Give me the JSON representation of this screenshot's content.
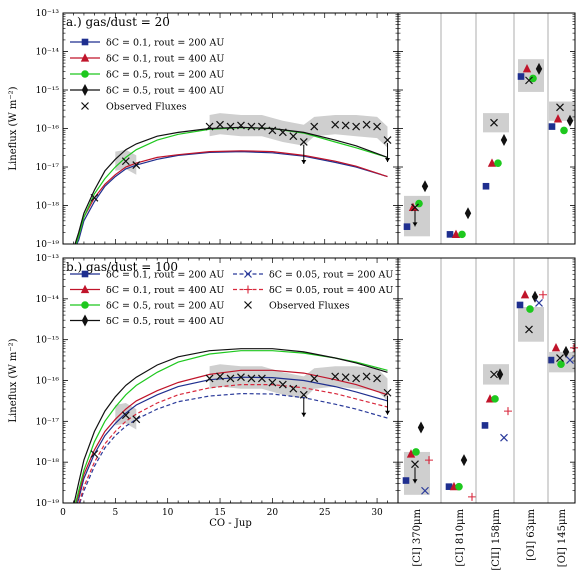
{
  "chart_data": [
    {
      "type": "line",
      "panel_title": "a.)  gas/dust = 20",
      "ylabel": "Lineflux (W m⁻²)",
      "xlim": [
        0,
        32
      ],
      "ylim_log10": [
        -19,
        -13
      ],
      "yscale": "log",
      "ytick_labels": [
        "10⁻¹⁹",
        "10⁻¹⁸",
        "10⁻¹⁷",
        "10⁻¹⁶",
        "10⁻¹⁵",
        "10⁻¹⁴",
        "10⁻¹³"
      ],
      "legend": [
        {
          "label": "δC = 0.1, rout = 200 AU",
          "color": "#1f2f8f",
          "marker": "square",
          "line": "solid"
        },
        {
          "label": "δC = 0.1, rout = 400 AU",
          "color": "#c0142a",
          "marker": "triangle",
          "line": "solid"
        },
        {
          "label": "δC = 0.5, rout = 200 AU",
          "color": "#1ec81e",
          "marker": "circle",
          "line": "solid"
        },
        {
          "label": "δC = 0.5, rout = 400 AU",
          "color": "#111111",
          "marker": "diamond",
          "line": "solid"
        },
        {
          "label": "Observed Fluxes",
          "color": "#111111",
          "marker": "x",
          "line": "none"
        }
      ],
      "observed_co": {
        "x": [
          3,
          6,
          7,
          14,
          15,
          16,
          17,
          18,
          19,
          20,
          21,
          22,
          23,
          24,
          26,
          27,
          28,
          29,
          30,
          31
        ],
        "log10_y": [
          -17.8,
          -16.85,
          -16.95,
          -15.95,
          -15.9,
          -15.95,
          -15.92,
          -15.95,
          -15.95,
          -16.05,
          -16.1,
          -16.2,
          -16.35,
          -15.95,
          -15.9,
          -15.92,
          -15.95,
          -15.9,
          -15.95,
          -16.3
        ]
      },
      "upper_limit_x": [
        23,
        31
      ],
      "obs_band": {
        "x": [
          5,
          6,
          7,
          14,
          15,
          17,
          19,
          21,
          23,
          24,
          26,
          28,
          30,
          31
        ],
        "log10_lo": [
          -17.1,
          -17.05,
          -17.2,
          -16.2,
          -16.15,
          -16.2,
          -16.2,
          -16.35,
          -16.45,
          -16.2,
          -16.15,
          -16.2,
          -16.25,
          -16.5
        ],
        "log10_hi": [
          -16.6,
          -16.55,
          -16.7,
          -15.65,
          -15.6,
          -15.65,
          -15.65,
          -15.8,
          -15.9,
          -15.7,
          -15.65,
          -15.65,
          -15.7,
          -15.95
        ]
      },
      "series": [
        {
          "color": "#1f2f8f",
          "x": [
            0.8,
            1.5,
            2,
            3,
            4,
            5,
            6,
            7,
            9,
            11,
            14,
            17,
            20,
            23,
            26,
            28,
            31
          ],
          "log10_y": [
            -19.3,
            -18.9,
            -18.4,
            -17.9,
            -17.5,
            -17.25,
            -17.05,
            -16.95,
            -16.8,
            -16.7,
            -16.62,
            -16.6,
            -16.63,
            -16.72,
            -16.88,
            -17.0,
            -17.25
          ]
        },
        {
          "color": "#c0142a",
          "x": [
            0.8,
            1.5,
            2,
            3,
            4,
            5,
            6,
            7,
            9,
            11,
            14,
            17,
            20,
            23,
            26,
            28,
            31
          ],
          "log10_y": [
            -19.3,
            -18.8,
            -18.3,
            -17.8,
            -17.45,
            -17.2,
            -17.0,
            -16.9,
            -16.75,
            -16.68,
            -16.6,
            -16.58,
            -16.6,
            -16.7,
            -16.85,
            -16.98,
            -17.25
          ]
        },
        {
          "color": "#1ec81e",
          "x": [
            1,
            1.5,
            2,
            3,
            4,
            5,
            6,
            7,
            9,
            11,
            14,
            17,
            20,
            23,
            26,
            28,
            31
          ],
          "log10_y": [
            -19.2,
            -18.8,
            -18.3,
            -17.7,
            -17.3,
            -17.0,
            -16.75,
            -16.55,
            -16.3,
            -16.15,
            -16.02,
            -15.98,
            -16.0,
            -16.12,
            -16.35,
            -16.5,
            -16.75
          ]
        },
        {
          "color": "#111111",
          "x": [
            0.8,
            1.5,
            2,
            3,
            4,
            5,
            6,
            7,
            9,
            11,
            14,
            17,
            20,
            23,
            26,
            28,
            31
          ],
          "log10_y": [
            -19.3,
            -18.7,
            -18.2,
            -17.6,
            -17.1,
            -16.8,
            -16.55,
            -16.4,
            -16.2,
            -16.1,
            -16.0,
            -15.97,
            -16.0,
            -16.1,
            -16.3,
            -16.45,
            -16.75
          ]
        }
      ],
      "atomic_lines": {
        "categories": [
          "[CI] 370μm",
          "[CI] 810μm",
          "[CII] 158μm",
          "[OI] 63μm",
          "[OI] 145μm"
        ],
        "observed_log10": [
          -18.05,
          null,
          -15.85,
          -14.75,
          -15.45
        ],
        "band": [
          [
            -18.8,
            -17.75
          ],
          null,
          [
            -16.1,
            -15.6
          ],
          [
            -15.05,
            -14.2
          ],
          [
            -15.8,
            -15.3
          ]
        ],
        "upper_limits": [
          0
        ],
        "models": [
          {
            "marker": "square",
            "color": "#1f2f8f",
            "log10_y": [
              -18.55,
              -18.75,
              -17.5,
              -14.65,
              -15.95
            ]
          },
          {
            "marker": "triangle",
            "color": "#c0142a",
            "log10_y": [
              -18.05,
              -18.75,
              -16.9,
              -14.45,
              -15.75
            ]
          },
          {
            "marker": "circle",
            "color": "#1ec81e",
            "log10_y": [
              -17.95,
              -18.75,
              -16.9,
              -14.7,
              -16.05
            ]
          },
          {
            "marker": "diamond",
            "color": "#111111",
            "log10_y": [
              -17.5,
              -18.2,
              -16.3,
              -14.45,
              -15.8
            ]
          }
        ]
      }
    },
    {
      "type": "line",
      "panel_title": "b.)  gas/dust = 100",
      "ylabel": "Lineflux (W m⁻²)",
      "xlabel": "CO - Jup",
      "xlim": [
        0,
        32
      ],
      "xticks": [
        0,
        5,
        10,
        15,
        20,
        25,
        30
      ],
      "ylim_log10": [
        -19,
        -13
      ],
      "yscale": "log",
      "ytick_labels": [
        "10⁻¹⁹",
        "10⁻¹⁸",
        "10⁻¹⁷",
        "10⁻¹⁶",
        "10⁻¹⁵",
        "10⁻¹⁴",
        "10⁻¹³"
      ],
      "legend": [
        {
          "label": "δC = 0.1, rout = 200 AU",
          "color": "#1f2f8f",
          "marker": "square",
          "line": "solid"
        },
        {
          "label": "δC = 0.1, rout = 400 AU",
          "color": "#c0142a",
          "marker": "triangle",
          "line": "solid"
        },
        {
          "label": "δC = 0.5, rout = 200 AU",
          "color": "#1ec81e",
          "marker": "circle",
          "line": "solid"
        },
        {
          "label": "δC = 0.5, rout = 400 AU",
          "color": "#111111",
          "marker": "diamond",
          "line": "solid"
        },
        {
          "label": "δC = 0.05, rout = 200 AU",
          "color": "#2a3a9a",
          "marker": "x",
          "line": "dashed"
        },
        {
          "label": "δC = 0.05, rout = 400 AU",
          "color": "#d8283c",
          "marker": "plus",
          "line": "dashed"
        },
        {
          "label": "Observed Fluxes",
          "color": "#111111",
          "marker": "x",
          "line": "none"
        }
      ],
      "observed_co": {
        "x": [
          3,
          6,
          7,
          14,
          15,
          16,
          17,
          18,
          19,
          20,
          21,
          22,
          23,
          24,
          26,
          27,
          28,
          29,
          30,
          31
        ],
        "log10_y": [
          -17.8,
          -16.85,
          -16.95,
          -15.95,
          -15.9,
          -15.95,
          -15.92,
          -15.95,
          -15.95,
          -16.05,
          -16.1,
          -16.2,
          -16.35,
          -15.95,
          -15.9,
          -15.92,
          -15.95,
          -15.9,
          -15.95,
          -16.3
        ]
      },
      "upper_limit_x": [
        23,
        31
      ],
      "obs_band": {
        "x": [
          5,
          6,
          7,
          14,
          15,
          17,
          19,
          21,
          23,
          24,
          26,
          28,
          30,
          31
        ],
        "log10_lo": [
          -17.1,
          -17.05,
          -17.2,
          -16.2,
          -16.15,
          -16.2,
          -16.2,
          -16.35,
          -16.45,
          -16.2,
          -16.15,
          -16.2,
          -16.25,
          -16.5
        ],
        "log10_hi": [
          -16.6,
          -16.55,
          -16.7,
          -15.65,
          -15.6,
          -15.65,
          -15.65,
          -15.8,
          -15.9,
          -15.7,
          -15.65,
          -15.65,
          -15.7,
          -15.95
        ]
      },
      "series": [
        {
          "color": "#1f2f8f",
          "dash": false,
          "x": [
            1,
            1.5,
            2,
            3,
            4,
            5,
            6,
            7,
            9,
            11,
            14,
            17,
            20,
            23,
            26,
            28,
            31
          ],
          "log10_y": [
            -19.3,
            -18.9,
            -18.4,
            -17.8,
            -17.35,
            -17.05,
            -16.8,
            -16.6,
            -16.35,
            -16.15,
            -15.98,
            -15.92,
            -15.93,
            -16.0,
            -16.15,
            -16.28,
            -16.5
          ]
        },
        {
          "color": "#c0142a",
          "dash": false,
          "x": [
            1,
            1.5,
            2,
            3,
            4,
            5,
            6,
            7,
            9,
            11,
            14,
            17,
            20,
            23,
            26,
            28,
            31
          ],
          "log10_y": [
            -19.2,
            -18.8,
            -18.3,
            -17.7,
            -17.25,
            -16.95,
            -16.7,
            -16.5,
            -16.25,
            -16.05,
            -15.85,
            -15.75,
            -15.75,
            -15.82,
            -15.98,
            -16.1,
            -16.35
          ]
        },
        {
          "color": "#1ec81e",
          "dash": false,
          "x": [
            1,
            1.5,
            2,
            3,
            4,
            5,
            6,
            7,
            9,
            11,
            14,
            17,
            20,
            23,
            26,
            28,
            31
          ],
          "log10_y": [
            -19.2,
            -18.7,
            -18.2,
            -17.5,
            -17.0,
            -16.65,
            -16.35,
            -16.12,
            -15.8,
            -15.55,
            -15.35,
            -15.27,
            -15.27,
            -15.33,
            -15.45,
            -15.55,
            -15.75
          ]
        },
        {
          "color": "#111111",
          "dash": false,
          "x": [
            0.8,
            1.5,
            2,
            3,
            4,
            5,
            6,
            7,
            9,
            11,
            14,
            17,
            20,
            23,
            26,
            28,
            31
          ],
          "log10_y": [
            -19.3,
            -18.5,
            -17.95,
            -17.25,
            -16.75,
            -16.4,
            -16.12,
            -15.92,
            -15.62,
            -15.42,
            -15.27,
            -15.22,
            -15.22,
            -15.3,
            -15.45,
            -15.57,
            -15.8
          ]
        },
        {
          "color": "#2a3a9a",
          "dash": true,
          "x": [
            1.2,
            2,
            3,
            4,
            5,
            6,
            7,
            9,
            11,
            14,
            17,
            20,
            23,
            26,
            28,
            31
          ],
          "log10_y": [
            -19.3,
            -18.7,
            -18.1,
            -17.65,
            -17.35,
            -17.12,
            -16.95,
            -16.7,
            -16.52,
            -16.38,
            -16.32,
            -16.33,
            -16.42,
            -16.58,
            -16.7,
            -16.92
          ]
        },
        {
          "color": "#d8283c",
          "dash": true,
          "x": [
            1.2,
            2,
            3,
            4,
            5,
            6,
            7,
            9,
            11,
            14,
            17,
            20,
            23,
            26,
            28,
            31
          ],
          "log10_y": [
            -19.3,
            -18.6,
            -18.0,
            -17.55,
            -17.25,
            -17.0,
            -16.82,
            -16.55,
            -16.35,
            -16.18,
            -16.1,
            -16.1,
            -16.18,
            -16.32,
            -16.45,
            -16.65
          ]
        }
      ],
      "atomic_lines": {
        "categories": [
          "[CI] 370μm",
          "[CI] 810μm",
          "[CII] 158μm",
          "[OI] 63μm",
          "[OI] 145μm"
        ],
        "observed_log10": [
          -18.05,
          null,
          -15.85,
          -14.75,
          -15.45
        ],
        "band": [
          [
            -18.8,
            -17.75
          ],
          null,
          [
            -16.1,
            -15.6
          ],
          [
            -15.05,
            -14.2
          ],
          [
            -15.8,
            -15.3
          ]
        ],
        "upper_limits": [
          0
        ],
        "models": [
          {
            "marker": "square",
            "color": "#1f2f8f",
            "log10_y": [
              -18.45,
              -18.6,
              -17.1,
              -14.15,
              -15.5
            ]
          },
          {
            "marker": "triangle",
            "color": "#c0142a",
            "log10_y": [
              -17.8,
              -18.6,
              -16.45,
              -13.9,
              -15.2
            ]
          },
          {
            "marker": "circle",
            "color": "#1ec81e",
            "log10_y": [
              -17.75,
              -18.6,
              -16.45,
              -14.25,
              -15.6
            ]
          },
          {
            "marker": "diamond",
            "color": "#111111",
            "log10_y": [
              -17.15,
              -17.95,
              -15.85,
              -13.95,
              -15.3
            ]
          },
          {
            "marker": "x",
            "color": "#2a3a9a",
            "log10_y": [
              -18.7,
              null,
              -17.4,
              -14.1,
              -15.5
            ]
          },
          {
            "marker": "plus",
            "color": "#d8283c",
            "log10_y": [
              -17.95,
              -18.85,
              -16.75,
              -13.9,
              -15.2
            ]
          }
        ]
      }
    }
  ]
}
